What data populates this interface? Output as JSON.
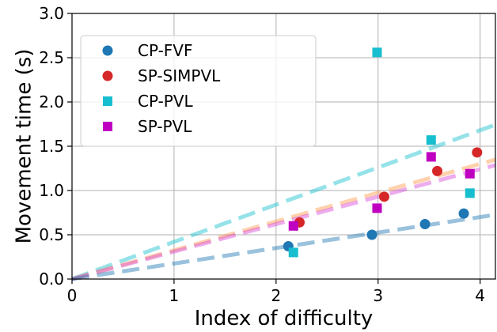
{
  "chart_data": {
    "type": "scatter",
    "title": "",
    "xlabel": "Index of difficulty",
    "ylabel": "Movement time (s)",
    "xlim": [
      0,
      4.15
    ],
    "ylim": [
      0,
      3.0
    ],
    "xticks": [
      "0",
      "1",
      "2",
      "3",
      "4"
    ],
    "yticks": [
      "0.0",
      "0.5",
      "1.0",
      "1.5",
      "2.0",
      "2.5",
      "3.0"
    ],
    "grid": true,
    "legend_position": "top-left",
    "series": [
      {
        "name": "CP-FVF",
        "marker": "circle",
        "color": "#1f77b4",
        "points": [
          [
            2.12,
            0.37
          ],
          [
            2.94,
            0.5
          ],
          [
            3.46,
            0.62
          ],
          [
            3.84,
            0.74
          ]
        ]
      },
      {
        "name": "SP-SIMPVL",
        "marker": "circle",
        "color": "#d62728",
        "points": [
          [
            2.23,
            0.64
          ],
          [
            3.06,
            0.93
          ],
          [
            3.58,
            1.22
          ],
          [
            3.97,
            1.43
          ]
        ]
      },
      {
        "name": "CP-PVL",
        "marker": "square",
        "color": "#17becf",
        "points": [
          [
            2.17,
            0.3
          ],
          [
            2.99,
            2.56
          ],
          [
            3.52,
            1.57
          ],
          [
            3.9,
            0.97
          ]
        ]
      },
      {
        "name": "SP-PVL",
        "marker": "square",
        "color": "#c000c0",
        "points": [
          [
            2.17,
            0.6
          ],
          [
            2.99,
            0.8
          ],
          [
            3.52,
            1.38
          ],
          [
            3.9,
            1.19
          ]
        ]
      }
    ],
    "fit_lines": [
      {
        "color": "#17becf",
        "slope": 0.42
      },
      {
        "color": "#ff9a4a",
        "slope": 0.325
      },
      {
        "color": "#d848d8",
        "slope": 0.31
      },
      {
        "color": "#1f77b4",
        "slope": 0.175
      }
    ]
  }
}
